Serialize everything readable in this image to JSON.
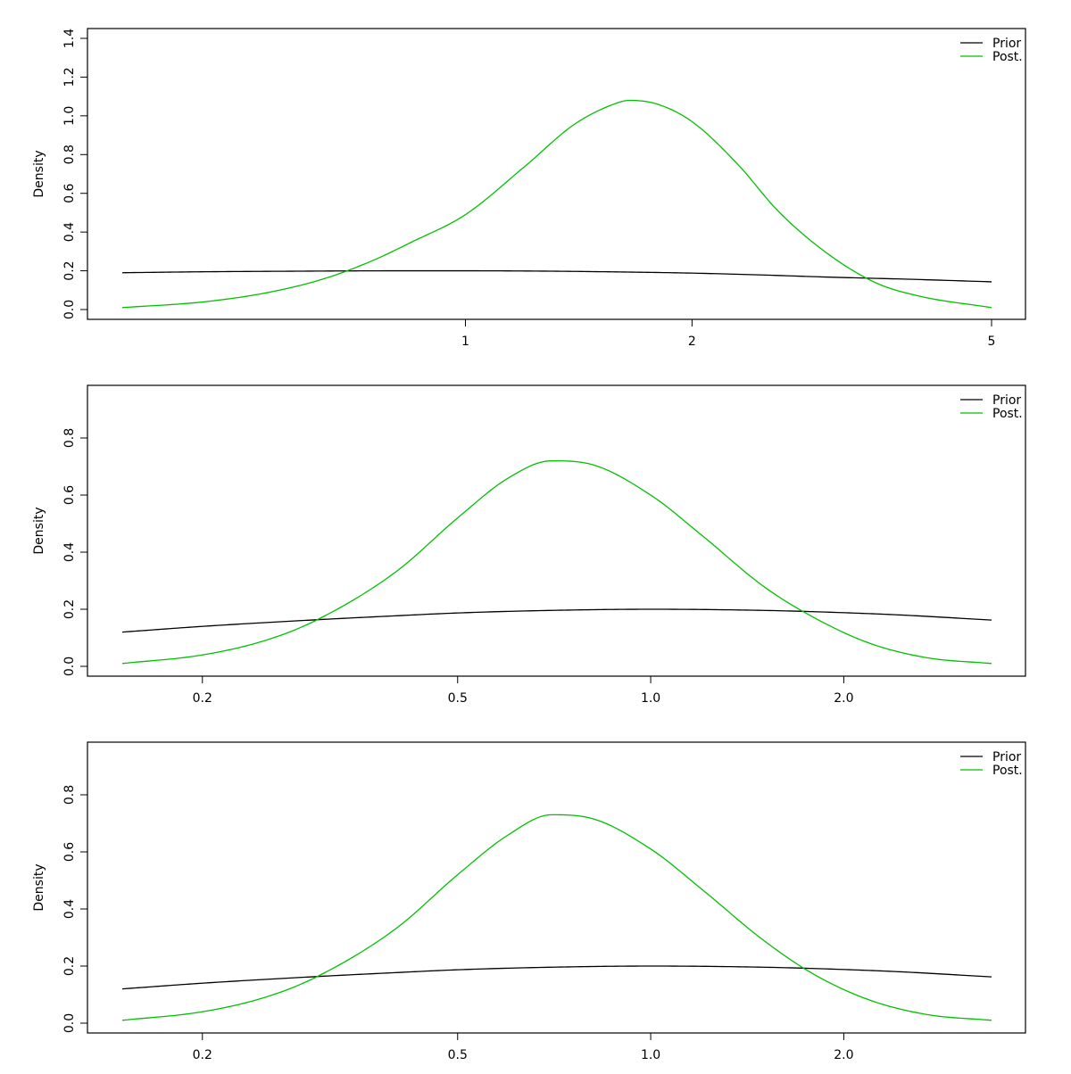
{
  "chart_data": [
    {
      "type": "line",
      "title": "",
      "xlabel": "",
      "ylabel": "Density",
      "x_scale": "log",
      "xlim": [
        0.35,
        5.0
      ],
      "ylim": [
        0,
        1.4
      ],
      "x_ticks": [
        1,
        2,
        5
      ],
      "x_tick_labels": [
        "1",
        "2",
        "5"
      ],
      "y_ticks": [
        0.0,
        0.2,
        0.4,
        0.6,
        0.8,
        1.0,
        1.2,
        1.4
      ],
      "y_tick_labels": [
        "0.0",
        "0.2",
        "0.4",
        "0.6",
        "0.8",
        "1.0",
        "1.2",
        "1.4"
      ],
      "legend": "top-right",
      "grid": false,
      "series": [
        {
          "name": "Prior",
          "color": "#000000",
          "x": [
            0.35,
            0.45,
            0.6,
            0.8,
            1.0,
            1.3,
            1.6,
            2.0,
            2.5,
            3.0,
            4.0,
            5.0
          ],
          "y": [
            0.19,
            0.195,
            0.198,
            0.2,
            0.2,
            0.198,
            0.194,
            0.188,
            0.178,
            0.168,
            0.155,
            0.143
          ]
        },
        {
          "name": "Post.",
          "color": "#00c000",
          "x": [
            0.35,
            0.45,
            0.55,
            0.65,
            0.75,
            0.85,
            1.0,
            1.2,
            1.4,
            1.6,
            1.65,
            1.8,
            2.0,
            2.3,
            2.6,
            3.0,
            3.5,
            4.0,
            5.0
          ],
          "y": [
            0.01,
            0.04,
            0.09,
            0.16,
            0.25,
            0.35,
            0.49,
            0.74,
            0.96,
            1.07,
            1.08,
            1.06,
            0.97,
            0.75,
            0.51,
            0.3,
            0.14,
            0.07,
            0.01
          ]
        }
      ]
    },
    {
      "type": "line",
      "title": "",
      "xlabel": "",
      "ylabel": "Density",
      "x_scale": "log",
      "xlim": [
        0.15,
        3.4
      ],
      "ylim": [
        0,
        0.95
      ],
      "x_ticks": [
        0.2,
        0.5,
        1.0,
        2.0
      ],
      "x_tick_labels": [
        "0.2",
        "0.5",
        "1.0",
        "2.0"
      ],
      "y_ticks": [
        0.0,
        0.2,
        0.4,
        0.6,
        0.8
      ],
      "y_tick_labels": [
        "0.0",
        "0.2",
        "0.4",
        "0.6",
        "0.8"
      ],
      "legend": "top-right",
      "grid": false,
      "series": [
        {
          "name": "Prior",
          "color": "#000000",
          "x": [
            0.15,
            0.2,
            0.3,
            0.4,
            0.5,
            0.7,
            1.0,
            1.5,
            2.0,
            2.5,
            3.4
          ],
          "y": [
            0.12,
            0.14,
            0.163,
            0.177,
            0.187,
            0.196,
            0.2,
            0.196,
            0.188,
            0.179,
            0.162
          ]
        },
        {
          "name": "Post.",
          "color": "#00c000",
          "x": [
            0.15,
            0.2,
            0.25,
            0.3,
            0.4,
            0.5,
            0.6,
            0.7,
            0.8,
            1.0,
            1.2,
            1.5,
            1.8,
            2.2,
            2.7,
            3.4
          ],
          "y": [
            0.01,
            0.04,
            0.09,
            0.16,
            0.33,
            0.52,
            0.66,
            0.72,
            0.71,
            0.6,
            0.46,
            0.28,
            0.17,
            0.08,
            0.03,
            0.01
          ]
        }
      ]
    },
    {
      "type": "line",
      "title": "",
      "xlabel": "",
      "ylabel": "Density",
      "x_scale": "log",
      "xlim": [
        0.15,
        3.4
      ],
      "ylim": [
        0,
        0.95
      ],
      "x_ticks": [
        0.2,
        0.5,
        1.0,
        2.0
      ],
      "x_tick_labels": [
        "0.2",
        "0.5",
        "1.0",
        "2.0"
      ],
      "y_ticks": [
        0.0,
        0.2,
        0.4,
        0.6,
        0.8
      ],
      "y_tick_labels": [
        "0.0",
        "0.2",
        "0.4",
        "0.6",
        "0.8"
      ],
      "legend": "top-right",
      "grid": false,
      "series": [
        {
          "name": "Prior",
          "color": "#000000",
          "x": [
            0.15,
            0.2,
            0.3,
            0.4,
            0.5,
            0.7,
            1.0,
            1.5,
            2.0,
            2.5,
            3.4
          ],
          "y": [
            0.12,
            0.14,
            0.163,
            0.177,
            0.187,
            0.196,
            0.2,
            0.196,
            0.188,
            0.179,
            0.162
          ]
        },
        {
          "name": "Post.",
          "color": "#00c000",
          "x": [
            0.15,
            0.2,
            0.25,
            0.3,
            0.4,
            0.5,
            0.6,
            0.7,
            0.8,
            1.0,
            1.2,
            1.5,
            1.8,
            2.2,
            2.7,
            3.4
          ],
          "y": [
            0.01,
            0.04,
            0.09,
            0.16,
            0.33,
            0.52,
            0.66,
            0.73,
            0.72,
            0.61,
            0.47,
            0.29,
            0.17,
            0.08,
            0.03,
            0.01
          ]
        }
      ]
    }
  ]
}
